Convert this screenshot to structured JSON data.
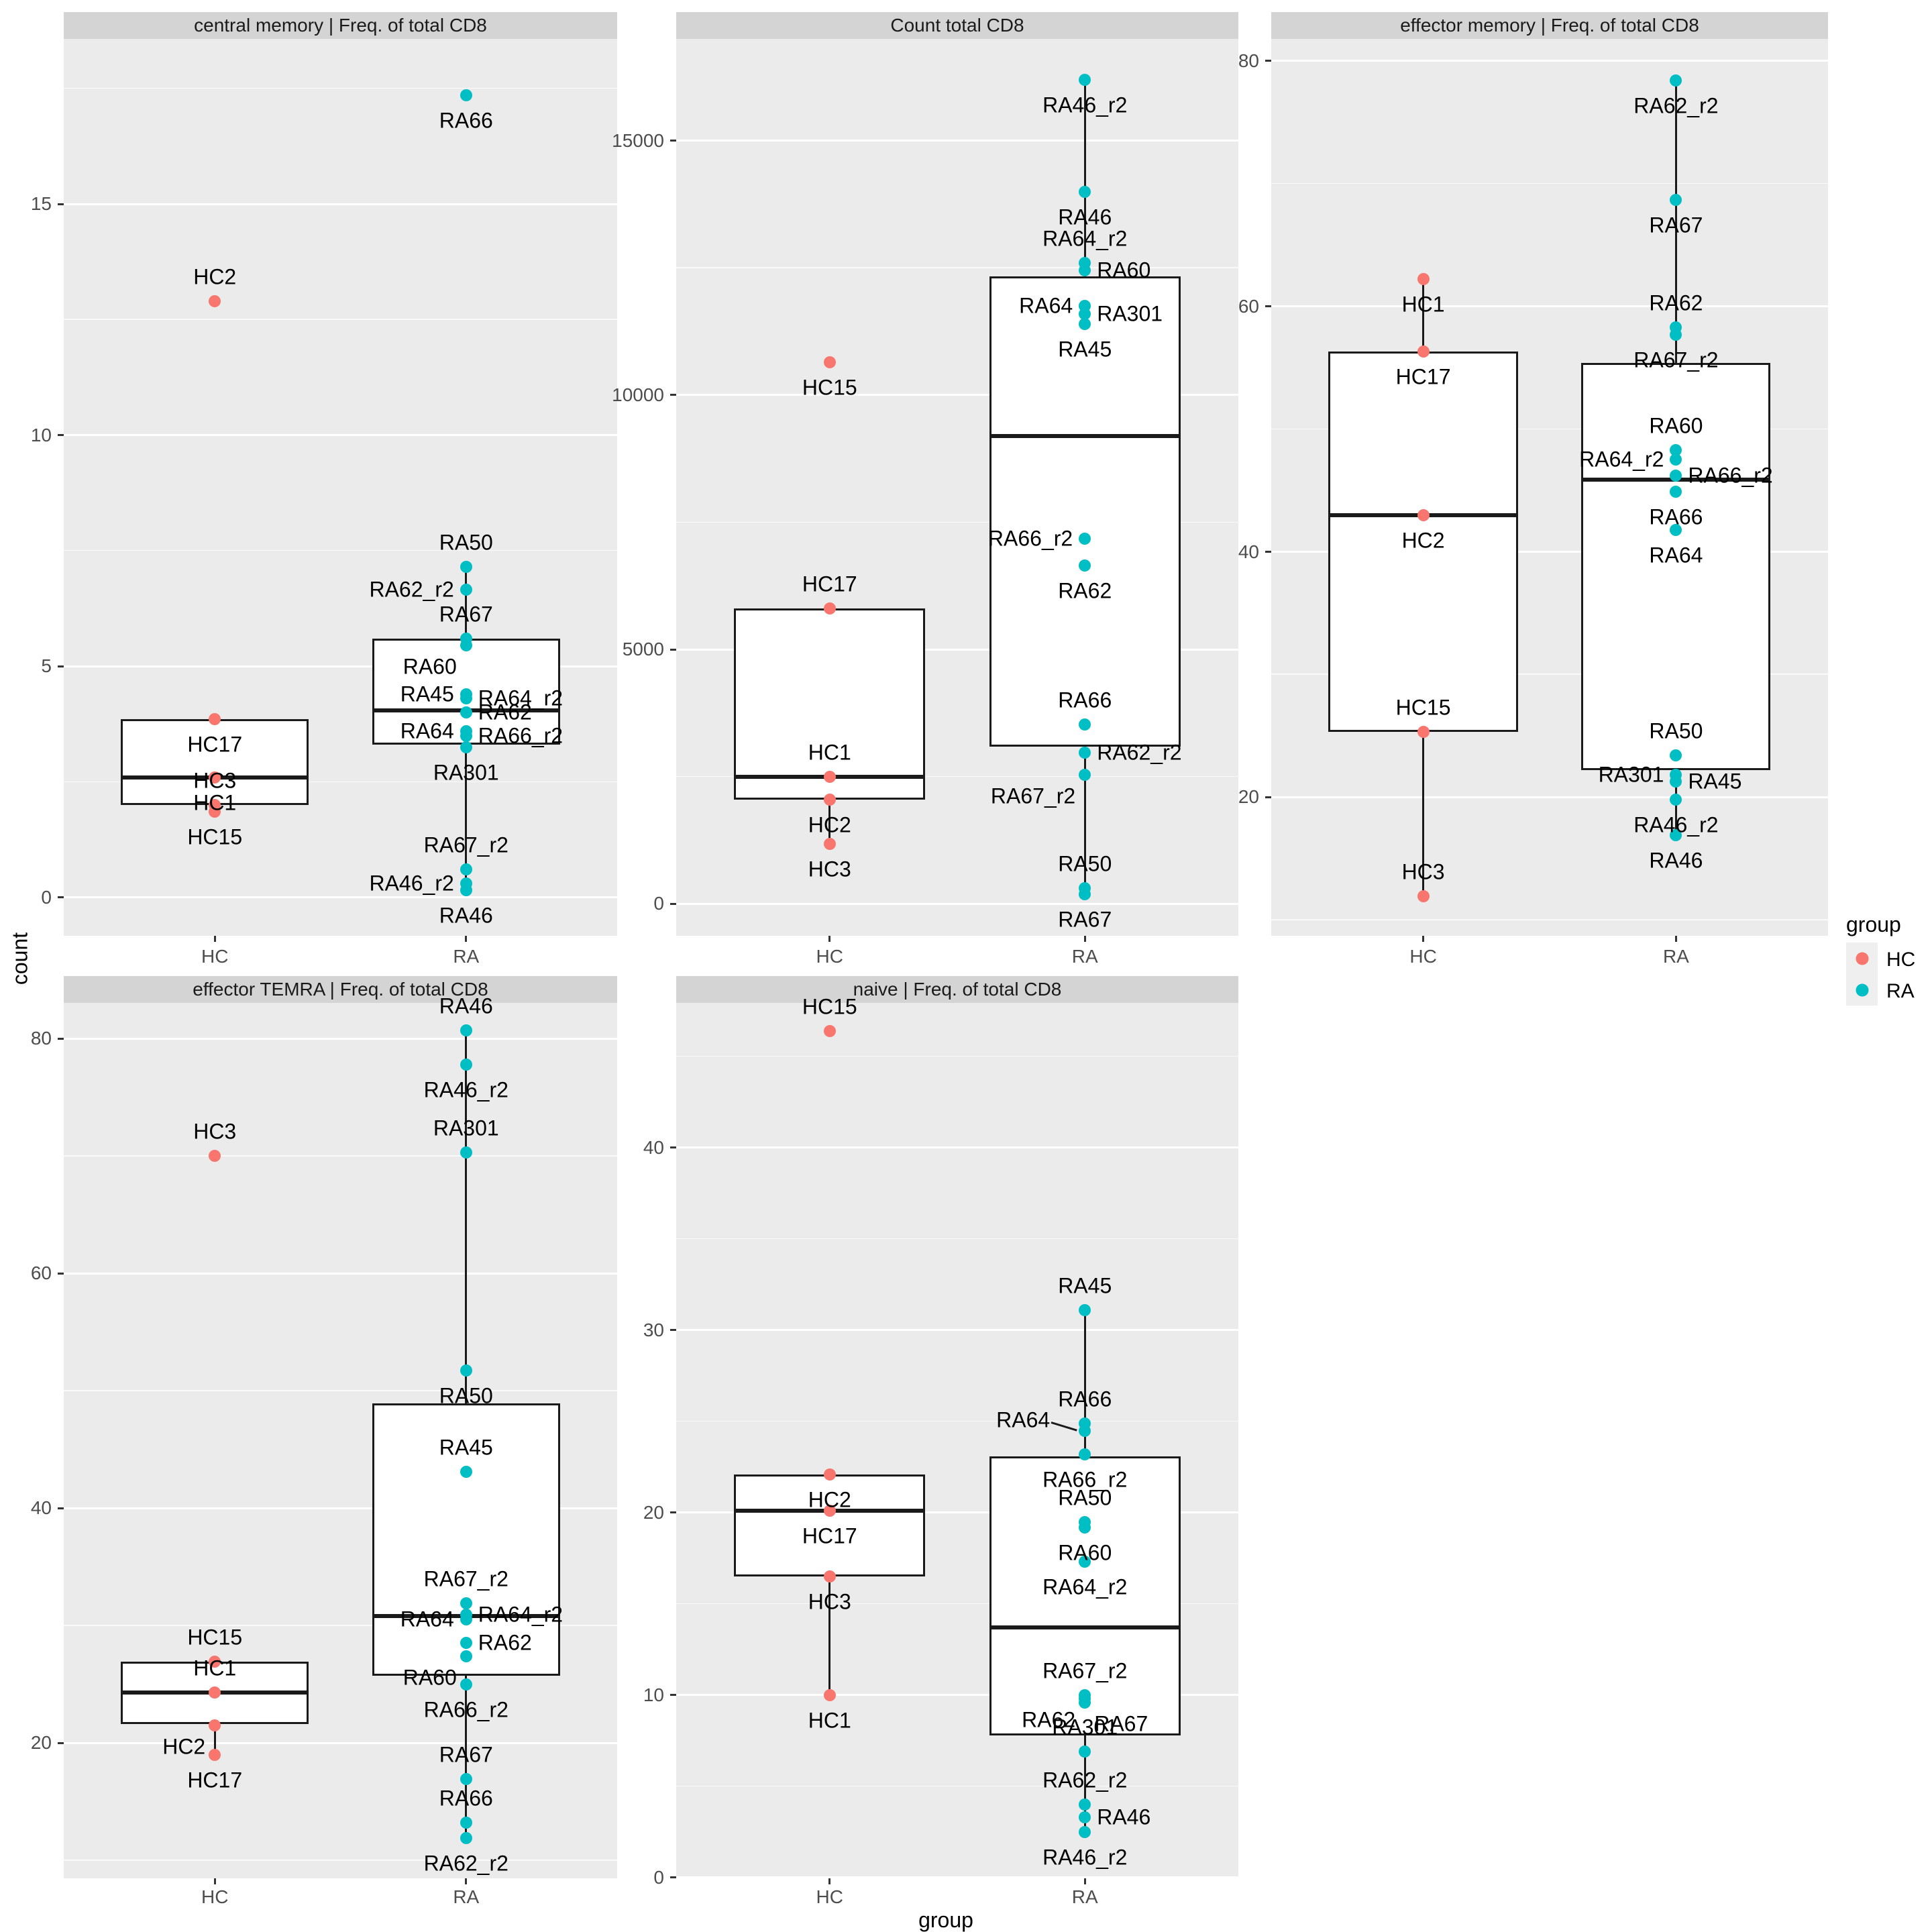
{
  "axis": {
    "x_title": "group",
    "y_title": "count"
  },
  "legend": {
    "title": "group",
    "items": [
      {
        "label": "HC",
        "color": "#F8766D"
      },
      {
        "label": "RA",
        "color": "#00BFC4"
      }
    ]
  },
  "chart_data": {
    "type": "boxplot",
    "categories": [
      "HC",
      "RA"
    ],
    "xlabel": "group",
    "ylabel": "count",
    "group_colors": {
      "HC": "#F8766D",
      "RA": "#00BFC4"
    },
    "style": {
      "panel_bg": "#EBEBEB",
      "strip_bg": "#D4D4D4",
      "grid": "#FFFFFF",
      "axis_text": "#4D4D4D"
    },
    "panels": [
      {
        "id": "central-memory",
        "title": "central memory | Freq. of total CD8",
        "row": 0,
        "col": 0,
        "ylim": [
          -0.83,
          18.57
        ],
        "yticks": [
          0,
          5,
          10,
          15
        ],
        "yminor": [
          2.5,
          7.5,
          12.5,
          17.5
        ],
        "series": {
          "HC": {
            "box": {
              "q1": 2.0,
              "med": 2.6,
              "q3": 3.85,
              "lo": 1.85,
              "hi": 3.85
            },
            "points": [
              {
                "s": "HC2",
                "v": 12.9,
                "lp": "t"
              },
              {
                "s": "HC17",
                "v": 3.85,
                "lp": "b"
              },
              {
                "s": "HC1",
                "v": 2.6,
                "lp": "b"
              },
              {
                "s": "HC3",
                "v": 2.0,
                "lp": "t"
              },
              {
                "s": "HC15",
                "v": 1.85,
                "lp": "b"
              }
            ]
          },
          "RA": {
            "box": {
              "q1": 3.3,
              "med": 4.05,
              "q3": 5.6,
              "lo": 0.15,
              "hi": 7.15
            },
            "points": [
              {
                "s": "RA66",
                "v": 17.35,
                "lp": "b"
              },
              {
                "s": "RA50",
                "v": 7.15,
                "lp": "t"
              },
              {
                "s": "RA62_r2",
                "v": 6.65,
                "lp": "l"
              },
              {
                "s": "RA67",
                "v": 5.6,
                "lp": "t"
              },
              {
                "s": "RA60",
                "v": 5.45,
                "lp": "bl"
              },
              {
                "s": "RA45",
                "v": 4.4,
                "lp": "l"
              },
              {
                "s": "RA64_r2",
                "v": 4.3,
                "lp": "r"
              },
              {
                "s": "RA62",
                "v": 4.0,
                "lp": "r"
              },
              {
                "s": "RA64",
                "v": 3.6,
                "lp": "l"
              },
              {
                "s": "RA66_r2",
                "v": 3.5,
                "lp": "r"
              },
              {
                "s": "RA301",
                "v": 3.25,
                "lp": "b"
              },
              {
                "s": "RA67_r2",
                "v": 0.6,
                "lp": "t"
              },
              {
                "s": "RA46_r2",
                "v": 0.3,
                "lp": "l"
              },
              {
                "s": "RA46",
                "v": 0.15,
                "lp": "b"
              }
            ]
          }
        }
      },
      {
        "id": "count-total-cd8",
        "title": "Count total CD8",
        "row": 0,
        "col": 1,
        "ylim": [
          -633,
          17005
        ],
        "yticks": [
          0,
          5000,
          10000,
          15000
        ],
        "yminor": [
          2500,
          7500,
          12500
        ],
        "series": {
          "HC": {
            "box": {
              "q1": 2050,
              "med": 2500,
              "q3": 5800,
              "lo": 1170,
              "hi": 5800
            },
            "points": [
              {
                "s": "HC15",
                "v": 10650,
                "lp": "b"
              },
              {
                "s": "HC17",
                "v": 5800,
                "lp": "t"
              },
              {
                "s": "HC1",
                "v": 2500,
                "lp": "t"
              },
              {
                "s": "HC2",
                "v": 2050,
                "lp": "b"
              },
              {
                "s": "HC3",
                "v": 1170,
                "lp": "b"
              }
            ]
          },
          "RA": {
            "box": {
              "q1": 3090,
              "med": 9200,
              "q3": 12340,
              "lo": 185,
              "hi": 16200
            },
            "points": [
              {
                "s": "RA46_r2",
                "v": 16200,
                "lp": "b"
              },
              {
                "s": "RA46",
                "v": 14000,
                "lp": "b"
              },
              {
                "s": "RA64_r2",
                "v": 12600,
                "lp": "t"
              },
              {
                "s": "RA60",
                "v": 12450,
                "lp": "r"
              },
              {
                "s": "RA64",
                "v": 11750,
                "lp": "l"
              },
              {
                "s": "RA301",
                "v": 11600,
                "lp": "r"
              },
              {
                "s": "RA45",
                "v": 11400,
                "lp": "b"
              },
              {
                "s": "RA66_r2",
                "v": 7180,
                "lp": "l"
              },
              {
                "s": "RA62",
                "v": 6650,
                "lp": "b"
              },
              {
                "s": "RA66",
                "v": 3520,
                "lp": "t"
              },
              {
                "s": "RA62_r2",
                "v": 2970,
                "lp": "r"
              },
              {
                "s": "RA67_r2",
                "v": 2530,
                "lp": "bl"
              },
              {
                "s": "RA50",
                "v": 300,
                "lp": "t"
              },
              {
                "s": "RA67",
                "v": 185,
                "lp": "b"
              }
            ]
          }
        }
      },
      {
        "id": "effector-memory",
        "title": "effector memory | Freq. of total CD8",
        "row": 0,
        "col": 2,
        "ylim": [
          8.7,
          81.8
        ],
        "yticks": [
          20,
          40,
          60,
          80
        ],
        "yminor": [
          10,
          30,
          50,
          70
        ],
        "series": {
          "HC": {
            "box": {
              "q1": 25.3,
              "med": 43.0,
              "q3": 56.3,
              "lo": 11.9,
              "hi": 62.2
            },
            "points": [
              {
                "s": "HC1",
                "v": 62.2,
                "lp": "b"
              },
              {
                "s": "HC17",
                "v": 56.3,
                "lp": "b"
              },
              {
                "s": "HC2",
                "v": 43.0,
                "lp": "b"
              },
              {
                "s": "HC15",
                "v": 25.3,
                "lp": "t"
              },
              {
                "s": "HC3",
                "v": 11.9,
                "lp": "t"
              }
            ]
          },
          "RA": {
            "box": {
              "q1": 22.2,
              "med": 45.9,
              "q3": 55.4,
              "lo": 16.9,
              "hi": 78.4
            },
            "points": [
              {
                "s": "RA62_r2",
                "v": 78.4,
                "lp": "b"
              },
              {
                "s": "RA67",
                "v": 68.7,
                "lp": "b"
              },
              {
                "s": "RA62",
                "v": 58.3,
                "lp": "t"
              },
              {
                "s": "RA67_r2",
                "v": 57.7,
                "lp": "b"
              },
              {
                "s": "RA60",
                "v": 48.3,
                "lp": "t"
              },
              {
                "s": "RA64_r2",
                "v": 47.5,
                "lp": "l"
              },
              {
                "s": "RA66_r2",
                "v": 46.2,
                "lp": "r"
              },
              {
                "s": "RA66",
                "v": 44.9,
                "lp": "b"
              },
              {
                "s": "RA64",
                "v": 41.8,
                "lp": "b"
              },
              {
                "s": "RA50",
                "v": 23.4,
                "lp": "t"
              },
              {
                "s": "RA301",
                "v": 21.8,
                "lp": "l"
              },
              {
                "s": "RA45",
                "v": 21.3,
                "lp": "r"
              },
              {
                "s": "RA46_r2",
                "v": 19.8,
                "lp": "b"
              },
              {
                "s": "RA46",
                "v": 16.9,
                "lp": "b"
              }
            ]
          }
        }
      },
      {
        "id": "effector-temra",
        "title": "effector TEMRA | Freq. of total CD8",
        "row": 1,
        "col": 0,
        "ylim": [
          8.46,
          83.03
        ],
        "yticks": [
          20,
          40,
          60,
          80
        ],
        "yminor": [
          10,
          30,
          50,
          70
        ],
        "series": {
          "HC": {
            "box": {
              "q1": 21.6,
              "med": 24.3,
              "q3": 26.9,
              "lo": 19.0,
              "hi": 26.9
            },
            "points": [
              {
                "s": "HC3",
                "v": 70.0,
                "lp": "t"
              },
              {
                "s": "HC15",
                "v": 26.9,
                "lp": "t"
              },
              {
                "s": "HC1",
                "v": 24.3,
                "lp": "t"
              },
              {
                "s": "HC2",
                "v": 21.5,
                "lp": "bl"
              },
              {
                "s": "HC17",
                "v": 19.0,
                "lp": "b"
              }
            ]
          },
          "RA": {
            "box": {
              "q1": 25.7,
              "med": 30.8,
              "q3": 48.9,
              "lo": 11.9,
              "hi": 80.7
            },
            "points": [
              {
                "s": "RA46",
                "v": 80.7,
                "lp": "t"
              },
              {
                "s": "RA46_r2",
                "v": 77.8,
                "lp": "b"
              },
              {
                "s": "RA301",
                "v": 70.3,
                "lp": "t"
              },
              {
                "s": "RA50",
                "v": 51.7,
                "lp": "b"
              },
              {
                "s": "RA45",
                "v": 43.1,
                "lp": "t"
              },
              {
                "s": "RA67_r2",
                "v": 31.9,
                "lp": "t"
              },
              {
                "s": "RA64_r2",
                "v": 30.9,
                "lp": "r"
              },
              {
                "s": "RA64",
                "v": 30.5,
                "lp": "l"
              },
              {
                "s": "RA62",
                "v": 28.5,
                "lp": "r"
              },
              {
                "s": "RA60",
                "v": 27.4,
                "lp": "bl"
              },
              {
                "s": "RA66_r2",
                "v": 25.0,
                "lp": "b"
              },
              {
                "s": "RA67",
                "v": 16.9,
                "lp": "t"
              },
              {
                "s": "RA66",
                "v": 13.2,
                "lp": "t"
              },
              {
                "s": "RA62_r2",
                "v": 11.9,
                "lp": "b"
              }
            ]
          }
        }
      },
      {
        "id": "naive",
        "title": "naive | Freq. of total CD8",
        "row": 1,
        "col": 1,
        "ylim": [
          -0.04,
          47.94
        ],
        "yticks": [
          0,
          10,
          20,
          30,
          40
        ],
        "yminor": [
          5,
          15,
          25,
          35,
          45
        ],
        "series": {
          "HC": {
            "box": {
              "q1": 16.5,
              "med": 20.1,
              "q3": 22.1,
              "lo": 10.0,
              "hi": 22.1
            },
            "points": [
              {
                "s": "HC15",
                "v": 46.4,
                "lp": "t"
              },
              {
                "s": "HC2",
                "v": 22.1,
                "lp": "b"
              },
              {
                "s": "HC17",
                "v": 20.1,
                "lp": "b"
              },
              {
                "s": "HC3",
                "v": 16.5,
                "lp": "b"
              },
              {
                "s": "HC1",
                "v": 10.0,
                "lp": "b"
              }
            ]
          },
          "RA": {
            "box": {
              "q1": 7.8,
              "med": 13.7,
              "q3": 23.1,
              "lo": 2.5,
              "hi": 31.1
            },
            "points": [
              {
                "s": "RA45",
                "v": 31.1,
                "lp": "t"
              },
              {
                "s": "RA66",
                "v": 24.9,
                "lp": "t"
              },
              {
                "s": "RA64",
                "v": 24.5,
                "lp": "l",
                "callout": true
              },
              {
                "s": "RA66_r2",
                "v": 23.2,
                "lp": "b"
              },
              {
                "s": "RA50",
                "v": 19.5,
                "lp": "t"
              },
              {
                "s": "RA60",
                "v": 19.2,
                "lp": "b"
              },
              {
                "s": "RA64_r2",
                "v": 17.3,
                "lp": "b"
              },
              {
                "s": "RA67_r2",
                "v": 10.0,
                "lp": "t"
              },
              {
                "s": "RA62",
                "v": 9.8,
                "lp": "bl"
              },
              {
                "s": "RA67",
                "v": 9.6,
                "lp": "br"
              },
              {
                "s": "RA301",
                "v": 6.9,
                "lp": "t"
              },
              {
                "s": "RA62_r2",
                "v": 4.0,
                "lp": "t"
              },
              {
                "s": "RA46",
                "v": 3.3,
                "lp": "r"
              },
              {
                "s": "RA46_r2",
                "v": 2.5,
                "lp": "b"
              }
            ]
          }
        }
      }
    ]
  }
}
